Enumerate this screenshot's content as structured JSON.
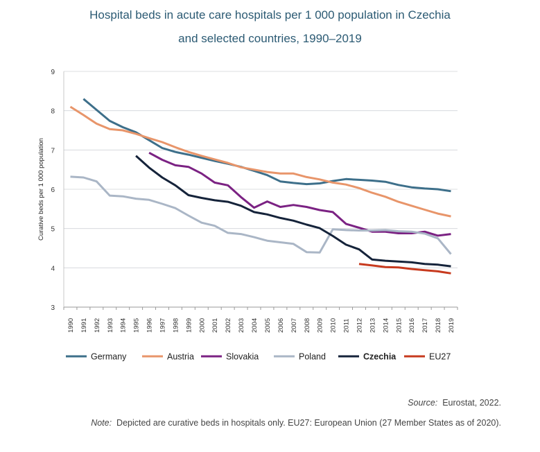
{
  "title_line1": "Hospital beds in acute care hospitals per 1 000 population in Czechia",
  "title_line2": "and selected countries, 1990–2019",
  "source_label": "Source:",
  "source_text": "Eurostat, 2022.",
  "note_label": "Note:",
  "note_text": "Depicted are curative beds in hospitals only. EU27: European Union (27 Member States as of 2020).",
  "colors": {
    "germany": "#3d6f8a",
    "austria": "#e8956a",
    "slovakia": "#7b2283",
    "poland": "#aab6c6",
    "czechia": "#15233a",
    "eu27": "#c73a1e"
  },
  "chart_data": {
    "type": "line",
    "title": "Hospital beds in acute care hospitals per 1 000 population in Czechia and selected countries, 1990–2019",
    "ylabel": "Curative beds per 1 000 population",
    "xlabel": "",
    "ylim": [
      3,
      9
    ],
    "yticks": [
      3,
      4,
      5,
      6,
      7,
      8,
      9
    ],
    "grid": true,
    "legend_position": "bottom",
    "x": [
      "1990",
      "1991",
      "1992",
      "1993",
      "1994",
      "1995",
      "1996",
      "1997",
      "1998",
      "1999",
      "2000",
      "2001",
      "2002",
      "2003",
      "2004",
      "2005",
      "2006",
      "2007",
      "2008",
      "2009",
      "2010",
      "2011",
      "2012",
      "2013",
      "2014",
      "2015",
      "2016",
      "2017",
      "2018",
      "2019"
    ],
    "series": [
      {
        "name": "Germany",
        "color": "#3d6f8a",
        "bold": false,
        "values": [
          null,
          8.3,
          8.02,
          7.74,
          7.58,
          7.45,
          7.25,
          7.05,
          6.95,
          6.88,
          6.8,
          6.72,
          6.65,
          6.57,
          6.47,
          6.36,
          6.2,
          6.16,
          6.13,
          6.15,
          6.21,
          6.26,
          6.24,
          6.22,
          6.19,
          6.11,
          6.05,
          6.02,
          6.0,
          5.95
        ]
      },
      {
        "name": "Austria",
        "color": "#e8956a",
        "bold": false,
        "values": [
          8.1,
          7.89,
          7.67,
          7.53,
          7.5,
          7.41,
          7.3,
          7.2,
          7.07,
          6.95,
          6.85,
          6.76,
          6.67,
          6.56,
          6.5,
          6.44,
          6.4,
          6.4,
          6.31,
          6.25,
          6.17,
          6.12,
          6.03,
          5.91,
          5.81,
          5.68,
          5.58,
          5.48,
          5.38,
          5.31
        ]
      },
      {
        "name": "Slovakia",
        "color": "#7b2283",
        "bold": false,
        "values": [
          null,
          null,
          null,
          null,
          null,
          null,
          6.93,
          6.75,
          6.61,
          6.57,
          6.4,
          6.17,
          6.1,
          5.8,
          5.53,
          5.69,
          5.55,
          5.6,
          5.55,
          5.47,
          5.42,
          5.12,
          5.02,
          4.92,
          4.92,
          4.88,
          4.88,
          4.92,
          4.82,
          4.86
        ]
      },
      {
        "name": "Poland",
        "color": "#aab6c6",
        "bold": false,
        "values": [
          6.32,
          6.3,
          6.2,
          5.84,
          5.82,
          5.76,
          5.73,
          5.63,
          5.52,
          5.33,
          5.15,
          5.07,
          4.89,
          4.86,
          4.78,
          4.69,
          4.65,
          4.61,
          4.4,
          4.39,
          4.98,
          4.96,
          4.95,
          4.95,
          4.96,
          4.93,
          4.92,
          4.87,
          4.75,
          4.35
        ]
      },
      {
        "name": "Czechia",
        "color": "#15233a",
        "bold": true,
        "values": [
          null,
          null,
          null,
          null,
          null,
          6.85,
          6.55,
          6.3,
          6.1,
          5.85,
          5.78,
          5.72,
          5.68,
          5.58,
          5.42,
          5.36,
          5.27,
          5.2,
          5.1,
          5.01,
          4.81,
          4.59,
          4.47,
          4.21,
          4.18,
          4.16,
          4.14,
          4.1,
          4.08,
          4.04
        ]
      },
      {
        "name": "EU27",
        "color": "#c73a1e",
        "bold": false,
        "values": [
          null,
          null,
          null,
          null,
          null,
          null,
          null,
          null,
          null,
          null,
          null,
          null,
          null,
          null,
          null,
          null,
          null,
          null,
          null,
          null,
          null,
          null,
          4.1,
          4.06,
          4.02,
          4.01,
          3.97,
          3.94,
          3.91,
          3.86
        ]
      }
    ]
  }
}
